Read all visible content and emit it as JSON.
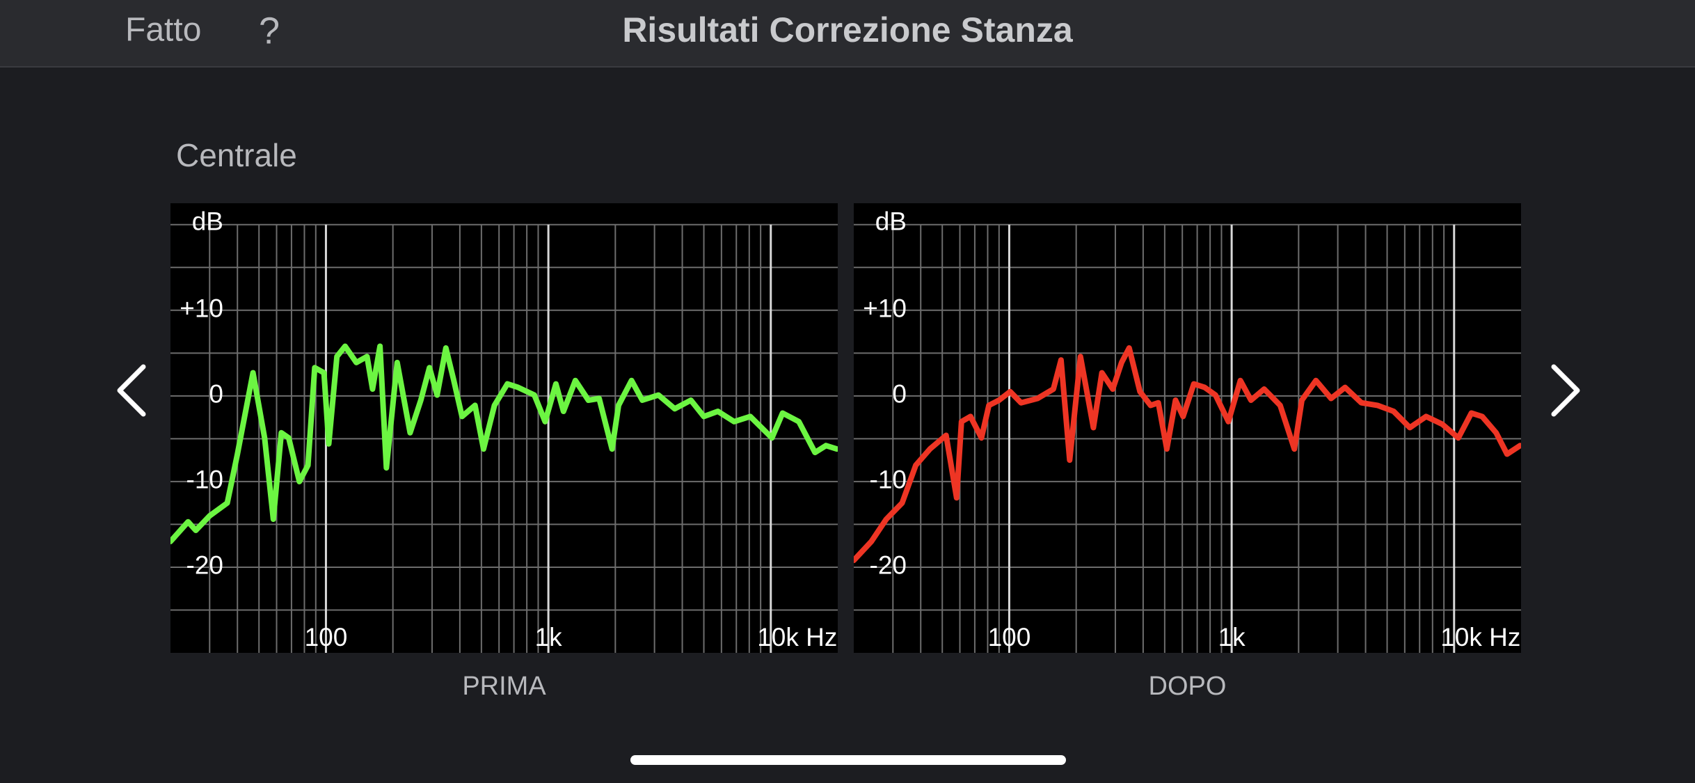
{
  "header": {
    "done": "Fatto",
    "help": "?",
    "title": "Risultati Correzione Stanza"
  },
  "section": "Centrale",
  "chart_data": [
    {
      "type": "line",
      "label": "PRIMA",
      "ylabel": "dB",
      "xscale": "log",
      "grid": true,
      "xlim": [
        20,
        20000
      ],
      "ylim": [
        -30,
        22.5
      ],
      "xticks": [
        100,
        {
          "value": 1000,
          "label": "1k"
        },
        {
          "value": 10000,
          "label": "10k Hz"
        }
      ],
      "yticks": [
        {
          "value": 10,
          "label": "+10"
        },
        0,
        -10,
        -20
      ],
      "x_minor_grid": [
        30,
        40,
        50,
        60,
        70,
        80,
        90,
        200,
        300,
        400,
        500,
        600,
        700,
        800,
        900,
        2000,
        3000,
        4000,
        5000,
        6000,
        7000,
        8000,
        9000
      ],
      "y_minor_grid": [
        -25,
        -15,
        -5,
        5,
        15,
        20
      ],
      "series": [
        {
          "color": "#6cf542",
          "x": [
            20,
            24,
            26,
            30,
            36,
            40,
            47,
            53,
            58,
            63,
            68,
            76,
            83,
            89,
            98,
            103,
            112,
            122,
            137,
            153,
            162,
            175,
            187,
            209,
            239,
            267,
            292,
            316,
            346,
            374,
            409,
            468,
            511,
            572,
            654,
            731,
            865,
            967,
            1081,
            1169,
            1322,
            1513,
            1692,
            1933,
            2069,
            2365,
            2644,
            3126,
            3698,
            4373,
            5000,
            5781,
            6836,
            8083,
            10116,
            11300,
            13370,
            15800,
            17700,
            19800
          ],
          "values": [
            -17,
            -14.7,
            -15.7,
            -14,
            -12.5,
            -6.8,
            2.7,
            -4.9,
            -14.4,
            -4.3,
            -4.9,
            -10,
            -8.1,
            3.3,
            2.7,
            -5.6,
            4.6,
            5.8,
            3.9,
            4.6,
            0.8,
            5.8,
            -8.4,
            3.9,
            -4.3,
            -0.5,
            3.3,
            0.1,
            5.6,
            2,
            -2.4,
            -1.1,
            -6.2,
            -1.1,
            1.4,
            1,
            0.1,
            -3,
            1.4,
            -1.8,
            1.8,
            -0.5,
            -0.3,
            -6.2,
            -1.1,
            1.8,
            -0.5,
            0.1,
            -1.5,
            -0.5,
            -2.4,
            -1.8,
            -3,
            -2.4,
            -4.9,
            -2,
            -3,
            -6.6,
            -5.8,
            -6.2
          ]
        }
      ]
    },
    {
      "type": "line",
      "label": "DOPO",
      "ylabel": "dB",
      "xscale": "log",
      "grid": true,
      "xlim": [
        20,
        20000
      ],
      "ylim": [
        -30,
        22.5
      ],
      "xticks": [
        100,
        {
          "value": 1000,
          "label": "1k"
        },
        {
          "value": 10000,
          "label": "10k Hz"
        }
      ],
      "yticks": [
        {
          "value": 10,
          "label": "+10"
        },
        0,
        -10,
        -20
      ],
      "x_minor_grid": [
        30,
        40,
        50,
        60,
        70,
        80,
        90,
        200,
        300,
        400,
        500,
        600,
        700,
        800,
        900,
        2000,
        3000,
        4000,
        5000,
        6000,
        7000,
        8000,
        9000
      ],
      "y_minor_grid": [
        -25,
        -15,
        -5,
        5,
        15,
        20
      ],
      "series": [
        {
          "color": "#ee3524",
          "x": [
            20,
            24,
            28,
            33,
            38,
            44,
            52,
            58,
            61,
            67,
            75,
            81,
            90,
            101,
            113,
            134,
            158,
            171,
            187,
            209,
            239,
            261,
            292,
            320,
            346,
            387,
            432,
            468,
            511,
            559,
            605,
            676,
            756,
            846,
            967,
            1094,
            1222,
            1400,
            1652,
            1913,
            2069,
            2392,
            2799,
            3236,
            3828,
            4521,
            5348,
            6324,
            7482,
            8851,
            10450,
            11960,
            13370,
            15450,
            17300,
            19800
          ],
          "values": [
            -19.2,
            -17,
            -14.4,
            -12.5,
            -8.1,
            -6.2,
            -4.6,
            -11.9,
            -3,
            -2.4,
            -4.9,
            -1.1,
            -0.5,
            0.5,
            -0.8,
            -0.3,
            0.8,
            4.2,
            -7.5,
            4.6,
            -3.7,
            2.7,
            0.8,
            3.9,
            5.6,
            0.5,
            -1.1,
            -0.8,
            -6.2,
            -0.5,
            -2.4,
            1.4,
            1,
            0.1,
            -3,
            1.8,
            -0.5,
            0.8,
            -1.1,
            -6.2,
            -0.5,
            1.8,
            -0.3,
            1,
            -0.8,
            -1.1,
            -1.8,
            -3.7,
            -2.4,
            -3.3,
            -4.9,
            -2,
            -2.4,
            -4.3,
            -6.8,
            -5.8
          ]
        }
      ]
    }
  ]
}
